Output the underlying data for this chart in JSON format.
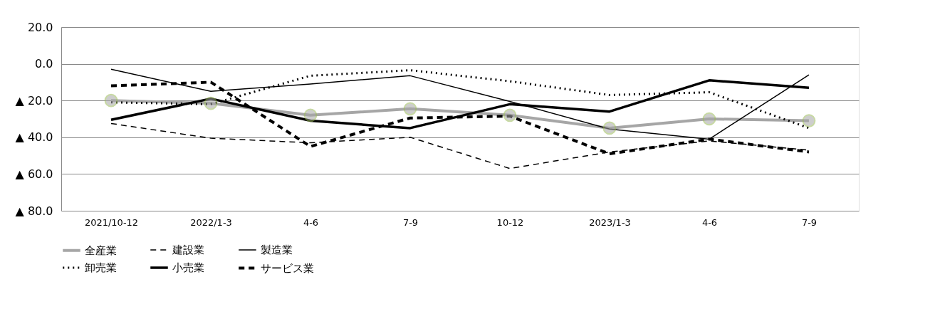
{
  "chart_data": {
    "type": "line",
    "categories": [
      "2021/10-12",
      "2022/1-3",
      "4-6",
      "7-9",
      "10-12",
      "2023/1-3",
      "4-6",
      "7-9"
    ],
    "ylim": [
      -80,
      20
    ],
    "yticks": [
      {
        "value": 20,
        "label": "20.0"
      },
      {
        "value": 0,
        "label": "0.0"
      },
      {
        "value": -20,
        "label": "▲ 20.0"
      },
      {
        "value": -40,
        "label": "▲ 40.0"
      },
      {
        "value": -60,
        "label": "▲ 60.0"
      },
      {
        "value": -80,
        "label": "▲ 80.0"
      }
    ],
    "grid": "y",
    "legend": "bottom",
    "series": [
      {
        "name": "全産業",
        "color": "#a6a6a6",
        "marker": "circle",
        "line_style": "solid",
        "values": [
          -20,
          -21.5,
          -28,
          -24.5,
          -28,
          -35,
          -30,
          -31
        ]
      },
      {
        "name": "建設業",
        "color": "#000000",
        "marker": "none",
        "line_style": "dashed",
        "values": [
          -32.5,
          -40.5,
          -43,
          -40,
          -57,
          -48,
          -42,
          -47
        ]
      },
      {
        "name": "製造業",
        "color": "#000000",
        "marker": "none",
        "line_style": "solid",
        "values": [
          -3,
          -15,
          -11,
          -6.5,
          -20.5,
          -35.5,
          -41,
          -6
        ]
      },
      {
        "name": "卸売業",
        "color": "#000000",
        "marker": "none",
        "line_style": "dotted",
        "values": [
          -21,
          -22,
          -6.5,
          -3.5,
          -9.5,
          -17,
          -15.5,
          -35
        ]
      },
      {
        "name": "小売業",
        "color": "#000000",
        "marker": "none",
        "line_style": "solid",
        "values": [
          -30.5,
          -19,
          -31,
          -35,
          -22,
          -26,
          -9,
          -13
        ]
      },
      {
        "name": "サービス業",
        "color": "#000000",
        "marker": "none",
        "line_style": "dashed",
        "values": [
          -12,
          -10,
          -45,
          -29.5,
          -28.5,
          -49,
          -41,
          -48
        ]
      }
    ]
  }
}
